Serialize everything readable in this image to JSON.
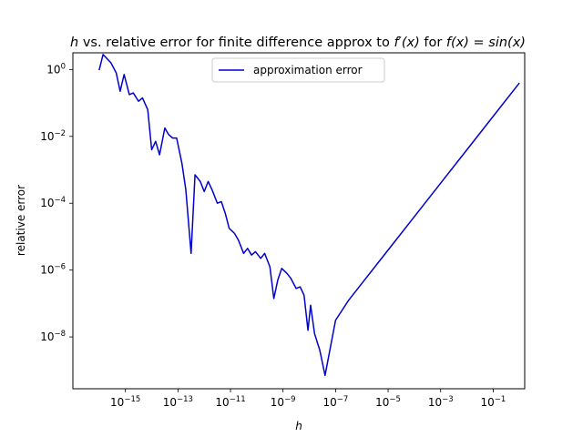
{
  "chart_data": {
    "type": "line",
    "title": "h vs. relative error for finite difference approx to f′(x) for f(x) = sin(x)",
    "title_parts": {
      "h": "h",
      "vs": " vs. relative error for finite difference approx to ",
      "fprime": "f′(x)",
      "for": " for ",
      "fx": "f(x) = sin(x)"
    },
    "xlabel": "h",
    "ylabel": "relative error",
    "xscale": "log",
    "yscale": "log",
    "xlim_exp": [
      -17,
      0.2
    ],
    "ylim_exp": [
      -9.55,
      0.5
    ],
    "x_ticks": [
      {
        "base": "10",
        "exp": "−15",
        "value": 1e-15
      },
      {
        "base": "10",
        "exp": "−13",
        "value": 1e-13
      },
      {
        "base": "10",
        "exp": "−11",
        "value": 1e-11
      },
      {
        "base": "10",
        "exp": "−9",
        "value": 1e-09
      },
      {
        "base": "10",
        "exp": "−7",
        "value": 1e-07
      },
      {
        "base": "10",
        "exp": "−5",
        "value": 1e-05
      },
      {
        "base": "10",
        "exp": "−3",
        "value": 0.001
      },
      {
        "base": "10",
        "exp": "−1",
        "value": 0.1
      }
    ],
    "y_ticks": [
      {
        "base": "10",
        "exp": "0",
        "value": 1
      },
      {
        "base": "10",
        "exp": "−2",
        "value": 0.01
      },
      {
        "base": "10",
        "exp": "−4",
        "value": 0.0001
      },
      {
        "base": "10",
        "exp": "−6",
        "value": 1e-06
      },
      {
        "base": "10",
        "exp": "−8",
        "value": 1e-08
      }
    ],
    "legend": {
      "placement": "top-center",
      "entries": [
        "approximation error"
      ]
    },
    "grid": false,
    "colors": {
      "series": "#0000cc"
    },
    "series": [
      {
        "name": "approximation error",
        "x_exp": [
          -16,
          -15.85,
          -15.55,
          -15.35,
          -15.2,
          -15.05,
          -14.85,
          -14.7,
          -14.5,
          -14.35,
          -14.15,
          -14.0,
          -13.85,
          -13.7,
          -13.5,
          -13.35,
          -13.2,
          -13.05,
          -12.85,
          -12.7,
          -12.5,
          -12.35,
          -12.15,
          -12.0,
          -11.85,
          -11.7,
          -11.5,
          -11.35,
          -11.2,
          -11.05,
          -10.85,
          -10.7,
          -10.5,
          -10.35,
          -10.2,
          -10.05,
          -9.85,
          -9.7,
          -9.5,
          -9.35,
          -9.2,
          -9.05,
          -8.85,
          -8.7,
          -8.5,
          -8.35,
          -8.2,
          -8.05,
          -7.95,
          -7.8,
          -7.6,
          -7.4,
          -7.0,
          -6.5,
          -6.0,
          -5.0,
          -4.0,
          -3.0,
          -2.0,
          -1.0,
          0
        ],
        "y_exp": [
          -0.02,
          0.45,
          0.2,
          -0.1,
          -0.65,
          -0.15,
          -0.75,
          -0.7,
          -0.95,
          -0.85,
          -1.2,
          -2.4,
          -2.15,
          -2.55,
          -1.75,
          -1.95,
          -2.05,
          -2.05,
          -2.8,
          -3.6,
          -5.5,
          -3.15,
          -3.35,
          -3.65,
          -3.35,
          -3.6,
          -4.0,
          -3.95,
          -4.3,
          -4.75,
          -4.9,
          -5.1,
          -5.5,
          -5.35,
          -5.55,
          -5.45,
          -5.65,
          -5.5,
          -5.9,
          -6.85,
          -6.3,
          -5.95,
          -6.1,
          -6.25,
          -6.55,
          -6.5,
          -6.75,
          -7.8,
          -7.05,
          -7.9,
          -8.4,
          -9.15,
          -7.5,
          -6.9,
          -6.4,
          -5.4,
          -4.4,
          -3.4,
          -2.4,
          -1.4,
          -0.4
        ]
      }
    ]
  }
}
